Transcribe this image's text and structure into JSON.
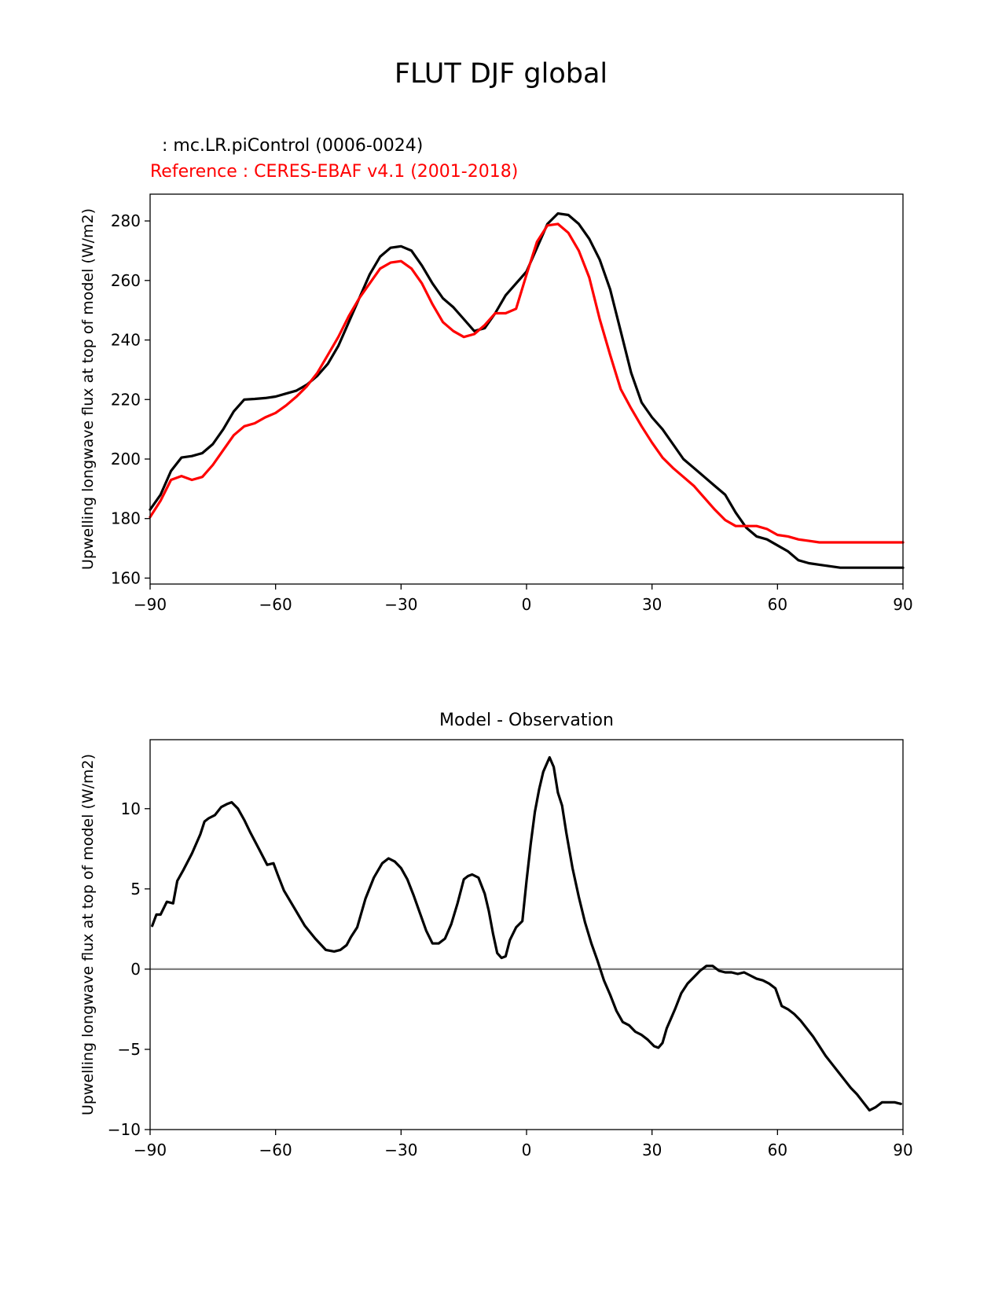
{
  "figure": {
    "suptitle": "FLUT DJF global",
    "test_label": ": mc.LR.piControl (0006-0024)",
    "reference_label": "Reference : CERES-EBAF v4.1 (2001-2018)",
    "colors": {
      "test": "#000000",
      "reference": "#ff0000",
      "zero_line": "#808080"
    }
  },
  "chart_data": [
    {
      "type": "line",
      "title": "",
      "xlabel": "",
      "ylabel": "Upwelling longwave flux at top of model (W/m2)",
      "xlim": [
        -90,
        90
      ],
      "ylim": [
        158,
        289
      ],
      "xticks": [
        -90,
        -60,
        -30,
        0,
        30,
        60,
        90
      ],
      "xtick_labels": [
        "−90",
        "−60",
        "−30",
        "0",
        "30",
        "60",
        "90"
      ],
      "yticks": [
        160,
        180,
        200,
        220,
        240,
        260,
        280
      ],
      "ytick_labels": [
        "160",
        "180",
        "200",
        "220",
        "240",
        "260",
        "280"
      ],
      "grid": false,
      "x": [
        -90,
        -87.5,
        -85,
        -82.5,
        -80,
        -77.5,
        -75,
        -72.5,
        -70,
        -67.5,
        -65,
        -62.5,
        -60,
        -57.5,
        -55,
        -52.5,
        -50,
        -47.5,
        -45,
        -42.5,
        -40,
        -37.5,
        -35,
        -32.5,
        -30,
        -27.5,
        -25,
        -22.5,
        -20,
        -17.5,
        -15,
        -12.5,
        -10,
        -7.5,
        -5,
        -2.5,
        0,
        2.5,
        5,
        7.5,
        10,
        12.5,
        15,
        17.5,
        20,
        22.5,
        25,
        27.5,
        30,
        32.5,
        35,
        37.5,
        40,
        42.5,
        45,
        47.5,
        50,
        52.5,
        55,
        57.5,
        60,
        62.5,
        65,
        67.5,
        70,
        72.5,
        75,
        77.5,
        80,
        82.5,
        85,
        87.5,
        90
      ],
      "series": [
        {
          "color": "#000000",
          "values": [
            183,
            188,
            196,
            200.5,
            201,
            202,
            205,
            210,
            216,
            220,
            220.2,
            220.5,
            221,
            222,
            223,
            225,
            228,
            232,
            238,
            246,
            254,
            262,
            268,
            271,
            271.5,
            270,
            265,
            259,
            254,
            251,
            247,
            243,
            244,
            249,
            255,
            259,
            263,
            271,
            279,
            282.5,
            282,
            279,
            274,
            267,
            257,
            243,
            229,
            219,
            214,
            210,
            205,
            200,
            197,
            194,
            191,
            188,
            182,
            177,
            174,
            173,
            171,
            169,
            166,
            165,
            164.5,
            164,
            163.5,
            163.5,
            163.5,
            163.5,
            163.5,
            163.5,
            163.5
          ]
        },
        {
          "color": "#ff0000",
          "values": [
            180.5,
            186,
            193,
            194.3,
            193,
            194,
            198,
            203,
            208,
            211,
            212,
            214,
            215.5,
            218,
            221,
            224.5,
            229,
            235,
            241,
            248,
            254,
            259,
            264,
            266,
            266.5,
            264,
            259,
            252,
            246,
            243,
            241,
            242,
            245,
            249,
            249,
            250.5,
            262,
            273,
            278.5,
            279,
            276,
            270,
            261,
            247,
            235,
            223.5,
            217,
            211,
            205.5,
            200.5,
            197,
            194,
            191,
            187,
            183,
            179.5,
            177.5,
            177.5,
            177.5,
            176.5,
            174.5,
            174,
            173,
            172.5,
            172,
            172,
            172,
            172,
            172,
            172,
            172,
            172,
            172
          ]
        }
      ]
    },
    {
      "type": "line",
      "title": "Model - Observation",
      "xlabel": "",
      "ylabel": "Upwelling longwave flux at top of model (W/m2)",
      "xlim": [
        -90,
        90
      ],
      "ylim": [
        -10,
        14.3
      ],
      "xticks": [
        -90,
        -60,
        -30,
        0,
        30,
        60,
        90
      ],
      "xtick_labels": [
        "−90",
        "−60",
        "−30",
        "0",
        "30",
        "60",
        "90"
      ],
      "yticks": [
        -10,
        -5,
        0,
        5,
        10
      ],
      "ytick_labels": [
        "−10",
        "−5",
        "0",
        "5",
        "10"
      ],
      "grid": false,
      "zero_line": 0,
      "x": [
        -89.5,
        -88.5,
        -87.5,
        -86,
        -84.5,
        -83.5,
        -82,
        -80,
        -78,
        -77,
        -76,
        -74.5,
        -73,
        -71.5,
        -70.5,
        -69,
        -67.5,
        -66,
        -64,
        -62,
        -60.5,
        -59.5,
        -58,
        -55.5,
        -53,
        -50.5,
        -48,
        -46,
        -44.5,
        -43,
        -42,
        -40.5,
        -38.5,
        -36.5,
        -34.5,
        -33,
        -31.5,
        -30,
        -28.5,
        -27,
        -25.5,
        -24,
        -22.5,
        -21,
        -19.5,
        -18,
        -16.5,
        -15,
        -14,
        -13,
        -11.5,
        -10,
        -9,
        -8,
        -7,
        -6,
        -5,
        -4,
        -2.5,
        -1,
        0,
        1,
        2,
        3,
        4,
        5,
        5.5,
        6.5,
        7.5,
        8.5,
        9.5,
        11,
        12.5,
        14,
        15.5,
        17,
        18.5,
        20,
        21.5,
        23,
        24.5,
        26,
        27.5,
        29,
        30.5,
        31.5,
        32.5,
        33.5,
        34.5,
        35.5,
        37,
        38.5,
        40,
        41.5,
        43,
        44.5,
        46,
        47.5,
        49,
        50.5,
        52,
        53.5,
        55,
        56.5,
        58,
        59.5,
        61,
        62.5,
        64,
        65.5,
        67,
        68.5,
        70,
        71.5,
        73,
        74.5,
        76,
        77.5,
        79,
        80.5,
        82,
        83.5,
        85,
        86.5,
        88,
        89.5
      ],
      "series": [
        {
          "color": "#000000",
          "values": [
            2.7,
            3.4,
            3.4,
            4.2,
            4.1,
            5.5,
            6.2,
            7.2,
            8.4,
            9.2,
            9.4,
            9.6,
            10.1,
            10.3,
            10.4,
            10.0,
            9.3,
            8.5,
            7.5,
            6.5,
            6.6,
            5.9,
            4.9,
            3.8,
            2.7,
            1.9,
            1.2,
            1.1,
            1.2,
            1.5,
            2.0,
            2.6,
            4.4,
            5.7,
            6.6,
            6.9,
            6.7,
            6.3,
            5.6,
            4.6,
            3.5,
            2.4,
            1.6,
            1.6,
            1.9,
            2.8,
            4.1,
            5.6,
            5.8,
            5.9,
            5.7,
            4.7,
            3.6,
            2.2,
            1.0,
            0.7,
            0.8,
            1.8,
            2.6,
            3.0,
            5.5,
            7.8,
            9.8,
            11.2,
            12.3,
            12.9,
            13.2,
            12.6,
            11.0,
            10.2,
            8.5,
            6.3,
            4.5,
            2.9,
            1.6,
            0.5,
            -0.7,
            -1.6,
            -2.6,
            -3.3,
            -3.5,
            -3.9,
            -4.1,
            -4.4,
            -4.8,
            -4.9,
            -4.6,
            -3.7,
            -3.1,
            -2.5,
            -1.5,
            -0.9,
            -0.5,
            -0.1,
            0.2,
            0.2,
            -0.1,
            -0.2,
            -0.2,
            -0.3,
            -0.2,
            -0.4,
            -0.6,
            -0.7,
            -0.9,
            -1.2,
            -2.3,
            -2.5,
            -2.8,
            -3.2,
            -3.7,
            -4.2,
            -4.8,
            -5.4,
            -5.9,
            -6.4,
            -6.9,
            -7.4,
            -7.8,
            -8.3,
            -8.8,
            -8.6,
            -8.3,
            -8.3,
            -8.3,
            -8.4
          ]
        }
      ]
    }
  ]
}
